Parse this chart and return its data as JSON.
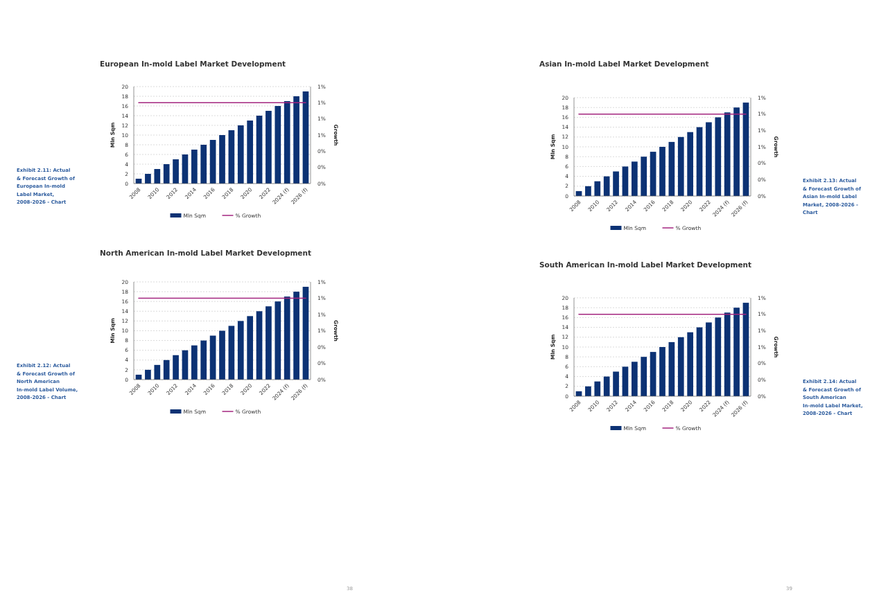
{
  "chart_data": [
    {
      "type": "bar",
      "title": "European In-mold Label Market Development",
      "categories": [
        "2008",
        null,
        "2010",
        null,
        "2012",
        null,
        "2014",
        null,
        "2016",
        null,
        "2018",
        null,
        "2020",
        null,
        "2022",
        null,
        "2024 (f)",
        null,
        "2026 (f)"
      ],
      "series": [
        {
          "name": "Mln Sqm",
          "type": "bar",
          "color": "#0c3274",
          "values": [
            1,
            2,
            3,
            4,
            5,
            6,
            7,
            8,
            9,
            10,
            11,
            12,
            13,
            14,
            15,
            16,
            17,
            18,
            19
          ]
        },
        {
          "name": "% Growth",
          "type": "line",
          "axis": "y2",
          "color": "#a3257f",
          "values": [
            1,
            1,
            1,
            1,
            1,
            1,
            1,
            1,
            1,
            1,
            1,
            1,
            1,
            1,
            1,
            1,
            1,
            1,
            1
          ]
        }
      ],
      "ylabel": "Mln Sqm",
      "y2label": "Growth",
      "ylim": [
        0,
        20
      ],
      "yticks": [
        0,
        2,
        4,
        6,
        8,
        10,
        12,
        14,
        16,
        18,
        20
      ],
      "y2lim": [
        0,
        1.2
      ],
      "y2ticks": [
        {
          "value": 0,
          "label": "0%"
        },
        {
          "value": 0.2,
          "label": "0%"
        },
        {
          "value": 0.4,
          "label": "0%"
        },
        {
          "value": 0.6,
          "label": "1%"
        },
        {
          "value": 0.8,
          "label": "1%"
        },
        {
          "value": 1.0,
          "label": "1%"
        },
        {
          "value": 1.2,
          "label": "1%"
        }
      ],
      "grid": "y",
      "legend": "bottom",
      "annotations": [
        "Exhibit 2.11: Actual & Forecast Growth of European In-mold Label Market, 2008-2026 - Chart"
      ]
    },
    {
      "type": "bar",
      "title": "Asian In-mold Label Market Development",
      "categories": [
        "2008",
        null,
        "2010",
        null,
        "2012",
        null,
        "2014",
        null,
        "2016",
        null,
        "2018",
        null,
        "2020",
        null,
        "2022",
        null,
        "2024 (f)",
        null,
        "2026 (f)"
      ],
      "series": [
        {
          "name": "Mln Sqm",
          "type": "bar",
          "color": "#0c3274",
          "values": [
            1,
            2,
            3,
            4,
            5,
            6,
            7,
            8,
            9,
            10,
            11,
            12,
            13,
            14,
            15,
            16,
            17,
            18,
            19
          ]
        },
        {
          "name": "% Growth",
          "type": "line",
          "axis": "y2",
          "color": "#a3257f",
          "values": [
            1,
            1,
            1,
            1,
            1,
            1,
            1,
            1,
            1,
            1,
            1,
            1,
            1,
            1,
            1,
            1,
            1,
            1,
            1
          ]
        }
      ],
      "ylabel": "Mln Sqm",
      "y2label": "Growth",
      "ylim": [
        0,
        20
      ],
      "yticks": [
        0,
        2,
        4,
        6,
        8,
        10,
        12,
        14,
        16,
        18,
        20
      ],
      "y2lim": [
        0,
        1.2
      ],
      "y2ticks": [
        {
          "value": 0,
          "label": "0%"
        },
        {
          "value": 0.2,
          "label": "0%"
        },
        {
          "value": 0.4,
          "label": "0%"
        },
        {
          "value": 0.6,
          "label": "1%"
        },
        {
          "value": 0.8,
          "label": "1%"
        },
        {
          "value": 1.0,
          "label": "1%"
        },
        {
          "value": 1.2,
          "label": "1%"
        }
      ],
      "grid": "y",
      "legend": "bottom",
      "annotations": [
        "Exhibit 2.13: Actual & Forecast Growth of Asian In-mold Label Market, 2008-2026 - Chart",
        "39"
      ]
    },
    {
      "type": "bar",
      "title": "North American In-mold Label Market Development",
      "categories": [
        "2008",
        null,
        "2010",
        null,
        "2012",
        null,
        "2014",
        null,
        "2016",
        null,
        "2018",
        null,
        "2020",
        null,
        "2022",
        null,
        "2024 (f)",
        null,
        "2026 (f)"
      ],
      "series": [
        {
          "name": "Mln Sqm",
          "type": "bar",
          "color": "#0c3274",
          "values": [
            1,
            2,
            3,
            4,
            5,
            6,
            7,
            8,
            9,
            10,
            11,
            12,
            13,
            14,
            15,
            16,
            17,
            18,
            19
          ]
        },
        {
          "name": "% Growth",
          "type": "line",
          "axis": "y2",
          "color": "#a3257f",
          "values": [
            1,
            1,
            1,
            1,
            1,
            1,
            1,
            1,
            1,
            1,
            1,
            1,
            1,
            1,
            1,
            1,
            1,
            1,
            1
          ]
        }
      ],
      "ylabel": "Mln Sqm",
      "y2label": "Growth",
      "ylim": [
        0,
        20
      ],
      "yticks": [
        0,
        2,
        4,
        6,
        8,
        10,
        12,
        14,
        16,
        18,
        20
      ],
      "y2lim": [
        0,
        1.2
      ],
      "y2ticks": [
        {
          "value": 0,
          "label": "0%"
        },
        {
          "value": 0.2,
          "label": "0%"
        },
        {
          "value": 0.4,
          "label": "0%"
        },
        {
          "value": 0.6,
          "label": "1%"
        },
        {
          "value": 0.8,
          "label": "1%"
        },
        {
          "value": 1.0,
          "label": "1%"
        },
        {
          "value": 1.2,
          "label": "1%"
        }
      ],
      "grid": "y",
      "legend": "bottom",
      "annotations": [
        "Exhibit 2.12: Actual & Forecast Growth of North American In-mold Label Volume, 2008-2026 - Chart",
        "38"
      ]
    },
    {
      "type": "bar",
      "title": "South American In-mold Label Market Development",
      "categories": [
        "2008",
        null,
        "2010",
        null,
        "2012",
        null,
        "2014",
        null,
        "2016",
        null,
        "2018",
        null,
        "2020",
        null,
        "2022",
        null,
        "2024 (f)",
        null,
        "2026 (f)"
      ],
      "series": [
        {
          "name": "Mln Sqm",
          "type": "bar",
          "color": "#0c3274",
          "values": [
            1,
            2,
            3,
            4,
            5,
            6,
            7,
            8,
            9,
            10,
            11,
            12,
            13,
            14,
            15,
            16,
            17,
            18,
            19
          ]
        },
        {
          "name": "% Growth",
          "type": "line",
          "axis": "y2",
          "color": "#a3257f",
          "values": [
            1,
            1,
            1,
            1,
            1,
            1,
            1,
            1,
            1,
            1,
            1,
            1,
            1,
            1,
            1,
            1,
            1,
            1,
            1
          ]
        }
      ],
      "ylabel": "Mln Sqm",
      "y2label": "Growth",
      "ylim": [
        0,
        20
      ],
      "yticks": [
        0,
        2,
        4,
        6,
        8,
        10,
        12,
        14,
        16,
        18,
        20
      ],
      "y2lim": [
        0,
        1.2
      ],
      "y2ticks": [
        {
          "value": 0,
          "label": "0%"
        },
        {
          "value": 0.2,
          "label": "0%"
        },
        {
          "value": 0.4,
          "label": "0%"
        },
        {
          "value": 0.6,
          "label": "1%"
        },
        {
          "value": 0.8,
          "label": "1%"
        },
        {
          "value": 1.0,
          "label": "1%"
        },
        {
          "value": 1.2,
          "label": "1%"
        }
      ],
      "grid": "y",
      "legend": "bottom",
      "annotations": [
        "Exhibit 2.14: Actual & Forecast Growth of South American In-mold Label Market, 2008-2026 - Chart"
      ]
    }
  ]
}
